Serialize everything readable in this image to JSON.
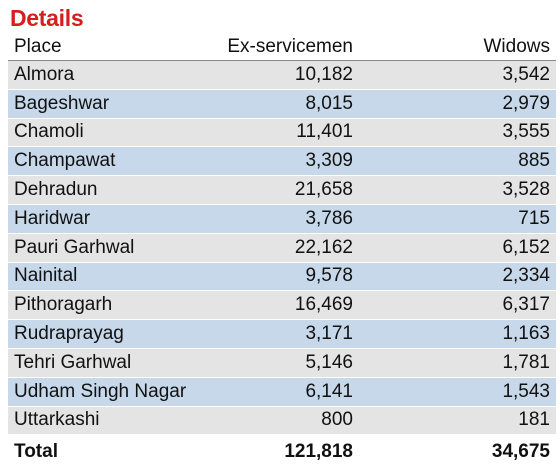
{
  "title": "Details",
  "table": {
    "headers": {
      "place": "Place",
      "ex_servicemen": "Ex-servicemen",
      "widows": "Widows"
    },
    "rows": [
      {
        "place": "Almora",
        "ex_servicemen": "10,182",
        "widows": "3,542"
      },
      {
        "place": "Bageshwar",
        "ex_servicemen": "8,015",
        "widows": "2,979"
      },
      {
        "place": "Chamoli",
        "ex_servicemen": "11,401",
        "widows": "3,555"
      },
      {
        "place": "Champawat",
        "ex_servicemen": "3,309",
        "widows": "885"
      },
      {
        "place": "Dehradun",
        "ex_servicemen": "21,658",
        "widows": "3,528"
      },
      {
        "place": "Haridwar",
        "ex_servicemen": "3,786",
        "widows": "715"
      },
      {
        "place": "Pauri Garhwal",
        "ex_servicemen": "22,162",
        "widows": "6,152"
      },
      {
        "place": "Nainital",
        "ex_servicemen": "9,578",
        "widows": "2,334"
      },
      {
        "place": "Pithoragarh",
        "ex_servicemen": "16,469",
        "widows": "6,317"
      },
      {
        "place": "Rudraprayag",
        "ex_servicemen": "3,171",
        "widows": "1,163"
      },
      {
        "place": "Tehri Garhwal",
        "ex_servicemen": "5,146",
        "widows": "1,781"
      },
      {
        "place": "Udham Singh Nagar",
        "ex_servicemen": "6,141",
        "widows": "1,543"
      },
      {
        "place": "Uttarkashi",
        "ex_servicemen": "800",
        "widows": "181"
      }
    ],
    "total": {
      "place": "Total",
      "ex_servicemen": "121,818",
      "widows": "34,675"
    }
  },
  "colors": {
    "title": "#d41f1f",
    "row_gray": "#e4e4e4",
    "row_blue": "#c6d8ea"
  }
}
